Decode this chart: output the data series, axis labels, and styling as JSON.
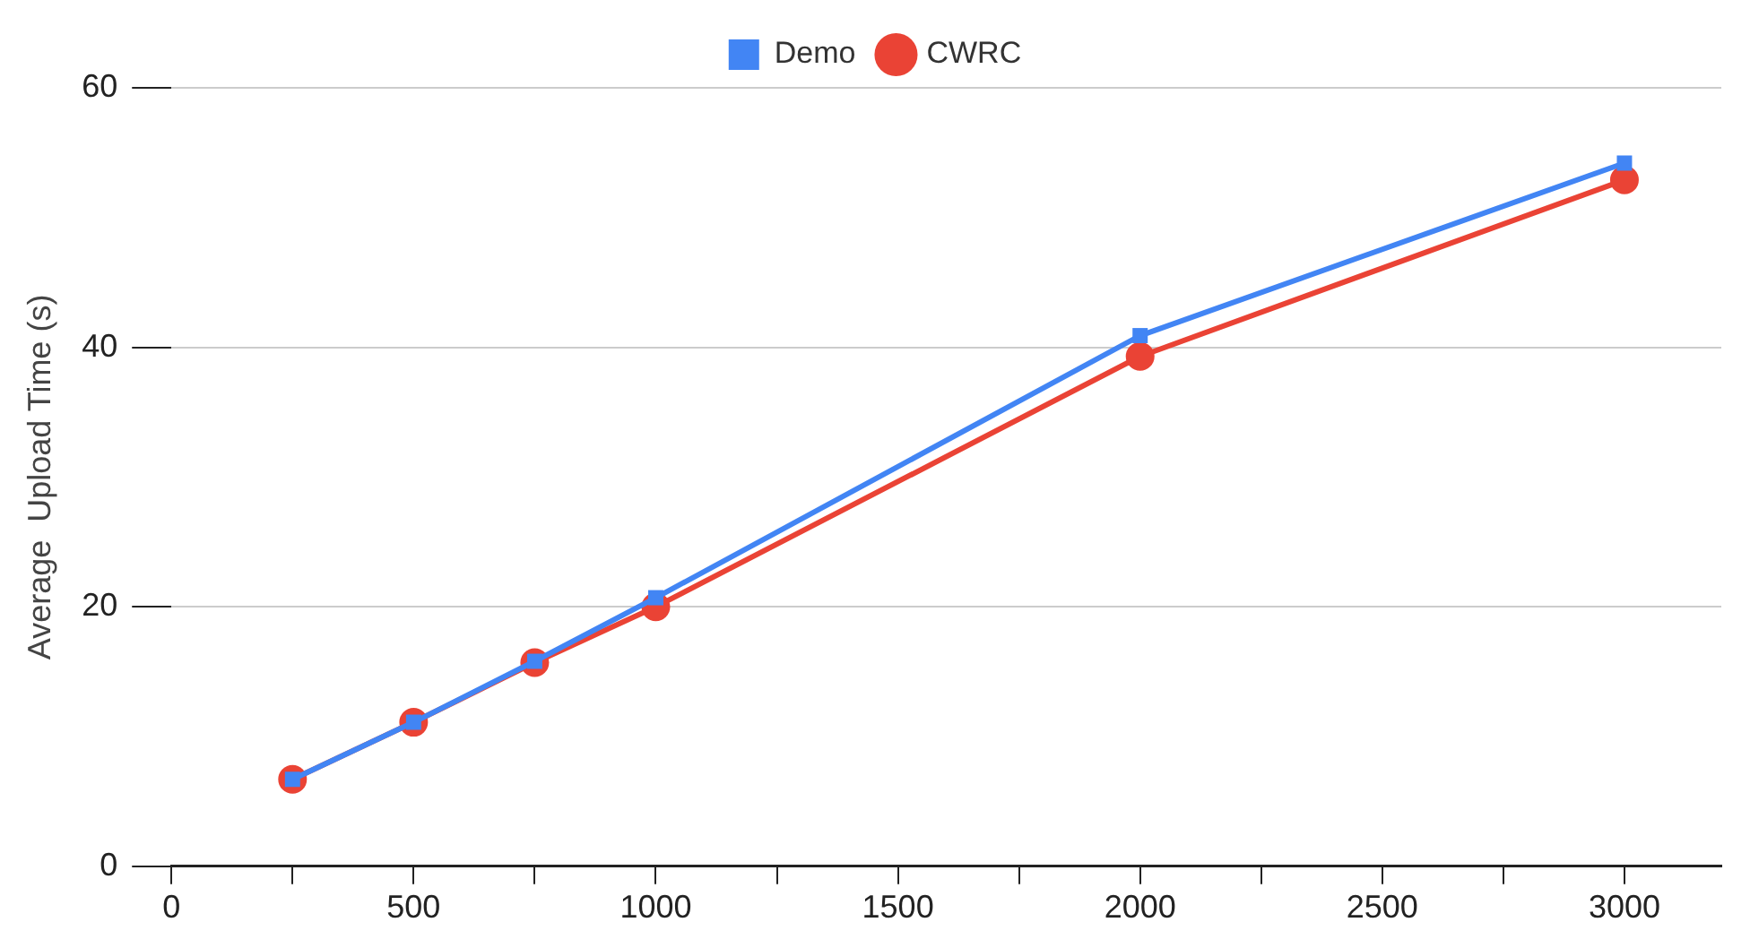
{
  "chart_data": {
    "type": "line",
    "ylabel": "Average  Upload Time (s)",
    "x": [
      250,
      500,
      750,
      1000,
      2000,
      3000
    ],
    "series": [
      {
        "name": "Demo",
        "color": "#4285f4",
        "marker": "square",
        "values": [
          6.7,
          11.1,
          15.8,
          20.7,
          40.9,
          54.2
        ]
      },
      {
        "name": "CWRC",
        "color": "#ea4335",
        "marker": "circle",
        "values": [
          6.7,
          11.1,
          15.7,
          20.0,
          39.3,
          52.9
        ]
      }
    ],
    "xlim": [
      0,
      3200
    ],
    "xticks": [
      0,
      {
        "value": 250,
        "label": null
      },
      500,
      {
        "value": 750,
        "label": null
      },
      1000,
      {
        "value": 1250,
        "label": null
      },
      1500,
      {
        "value": 1750,
        "label": null
      },
      2000,
      {
        "value": 2250,
        "label": null
      },
      2500,
      {
        "value": 2750,
        "label": null
      },
      3000
    ],
    "ylim": [
      0,
      60
    ],
    "yticks": [
      0,
      20,
      40,
      60
    ],
    "grid": "y",
    "legend": "top",
    "line_style": "solid"
  }
}
